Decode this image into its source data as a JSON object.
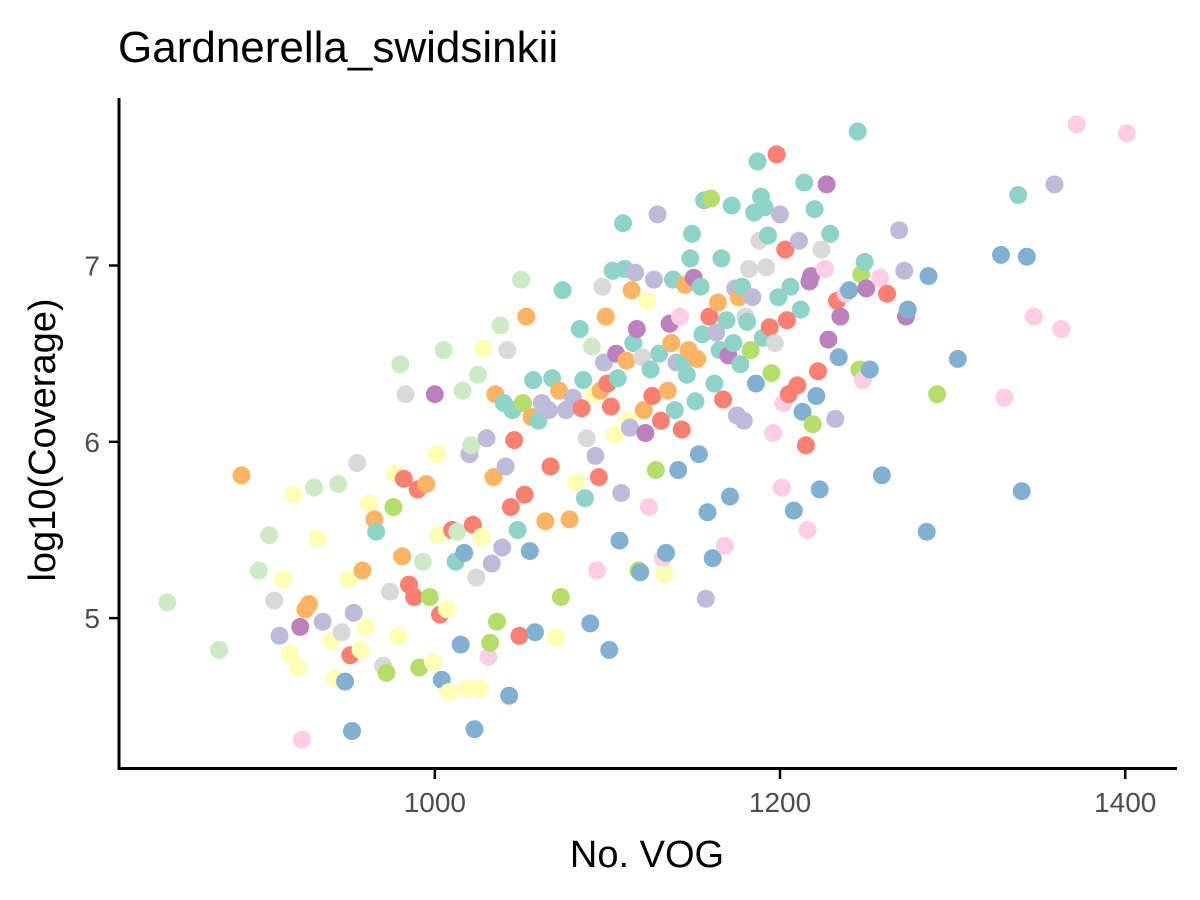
{
  "chart_data": {
    "type": "scatter",
    "title": "Gardnerella_swidsinkii",
    "xlabel": "No. VOG",
    "ylabel": "log10(Coverage)",
    "xlim": [
      817,
      1430
    ],
    "ylim": [
      4.15,
      7.95
    ],
    "x_ticks": [
      1000,
      1200,
      1400
    ],
    "x_tick_labels": [
      "1000",
      "1200",
      "1400"
    ],
    "y_ticks": [
      5,
      6,
      7
    ],
    "y_tick_labels": [
      "5",
      "6",
      "7"
    ],
    "grid": false,
    "legend": "none",
    "colors": {
      "teal": "#8dd3c7",
      "yellow": "#ffffb3",
      "lavender": "#bebada",
      "salmon": "#fb8072",
      "blue": "#80b1d3",
      "orange": "#fdb462",
      "green": "#b3de69",
      "pink": "#fccde5",
      "grey": "#d9d9d9",
      "purple": "#bc80bd",
      "mint": "#ccebc5"
    },
    "points": [
      [
        845,
        5.09,
        "mint"
      ],
      [
        875,
        4.82,
        "mint"
      ],
      [
        888,
        5.81,
        "orange"
      ],
      [
        898,
        5.27,
        "mint"
      ],
      [
        904,
        5.47,
        "mint"
      ],
      [
        907,
        5.1,
        "grey"
      ],
      [
        910,
        4.9,
        "lavender"
      ],
      [
        912,
        5.22,
        "yellow"
      ],
      [
        916,
        4.8,
        "yellow"
      ],
      [
        918,
        5.7,
        "yellow"
      ],
      [
        921,
        4.72,
        "yellow"
      ],
      [
        922,
        4.95,
        "purple"
      ],
      [
        923,
        4.31,
        "pink"
      ],
      [
        925,
        5.05,
        "orange"
      ],
      [
        927,
        5.08,
        "orange"
      ],
      [
        930,
        5.74,
        "mint"
      ],
      [
        932,
        5.45,
        "yellow"
      ],
      [
        935,
        4.98,
        "lavender"
      ],
      [
        940,
        4.87,
        "yellow"
      ],
      [
        942,
        4.66,
        "yellow"
      ],
      [
        944,
        5.76,
        "mint"
      ],
      [
        946,
        4.92,
        "grey"
      ],
      [
        948,
        4.64,
        "blue"
      ],
      [
        950,
        5.22,
        "yellow"
      ],
      [
        951,
        4.79,
        "salmon"
      ],
      [
        952,
        4.36,
        "blue"
      ],
      [
        953,
        5.03,
        "lavender"
      ],
      [
        955,
        5.88,
        "grey"
      ],
      [
        957,
        4.82,
        "yellow"
      ],
      [
        958,
        5.27,
        "orange"
      ],
      [
        960,
        4.95,
        "yellow"
      ],
      [
        962,
        5.65,
        "yellow"
      ],
      [
        965,
        5.56,
        "orange"
      ],
      [
        966,
        5.49,
        "teal"
      ],
      [
        970,
        4.73,
        "grey"
      ],
      [
        972,
        4.69,
        "green"
      ],
      [
        974,
        5.15,
        "grey"
      ],
      [
        976,
        5.63,
        "green"
      ],
      [
        977,
        5.82,
        "yellow"
      ],
      [
        979,
        4.9,
        "yellow"
      ],
      [
        980,
        6.44,
        "mint"
      ],
      [
        981,
        5.35,
        "orange"
      ],
      [
        982,
        5.79,
        "salmon"
      ],
      [
        983,
        6.27,
        "grey"
      ],
      [
        985,
        5.19,
        "salmon"
      ],
      [
        988,
        5.12,
        "salmon"
      ],
      [
        990,
        5.73,
        "salmon"
      ],
      [
        991,
        4.72,
        "green"
      ],
      [
        993,
        5.32,
        "mint"
      ],
      [
        995,
        5.76,
        "orange"
      ],
      [
        997,
        5.12,
        "green"
      ],
      [
        999,
        4.75,
        "yellow"
      ],
      [
        1000,
        6.27,
        "purple"
      ],
      [
        1001,
        5.93,
        "yellow"
      ],
      [
        1002,
        5.47,
        "yellow"
      ],
      [
        1003,
        5.02,
        "salmon"
      ],
      [
        1004,
        4.65,
        "blue"
      ],
      [
        1005,
        6.52,
        "mint"
      ],
      [
        1007,
        5.05,
        "yellow"
      ],
      [
        1008,
        4.58,
        "yellow"
      ],
      [
        1010,
        5.5,
        "salmon"
      ],
      [
        1012,
        5.32,
        "teal"
      ],
      [
        1013,
        5.49,
        "mint"
      ],
      [
        1015,
        4.85,
        "blue"
      ],
      [
        1016,
        6.29,
        "mint"
      ],
      [
        1017,
        5.37,
        "blue"
      ],
      [
        1018,
        4.6,
        "yellow"
      ],
      [
        1020,
        5.93,
        "lavender"
      ],
      [
        1021,
        5.98,
        "mint"
      ],
      [
        1022,
        5.53,
        "salmon"
      ],
      [
        1023,
        4.37,
        "blue"
      ],
      [
        1024,
        5.23,
        "grey"
      ],
      [
        1025,
        6.38,
        "mint"
      ],
      [
        1026,
        4.6,
        "yellow"
      ],
      [
        1027,
        5.46,
        "yellow"
      ],
      [
        1028,
        6.53,
        "yellow"
      ],
      [
        1030,
        6.02,
        "lavender"
      ],
      [
        1031,
        4.78,
        "pink"
      ],
      [
        1032,
        4.86,
        "green"
      ],
      [
        1033,
        5.31,
        "lavender"
      ],
      [
        1034,
        5.8,
        "orange"
      ],
      [
        1035,
        6.27,
        "orange"
      ],
      [
        1036,
        4.98,
        "green"
      ],
      [
        1038,
        6.66,
        "mint"
      ],
      [
        1039,
        5.4,
        "lavender"
      ],
      [
        1040,
        6.22,
        "teal"
      ],
      [
        1041,
        5.86,
        "lavender"
      ],
      [
        1042,
        6.52,
        "grey"
      ],
      [
        1043,
        4.56,
        "blue"
      ],
      [
        1044,
        5.63,
        "salmon"
      ],
      [
        1045,
        6.18,
        "teal"
      ],
      [
        1046,
        6.01,
        "salmon"
      ],
      [
        1048,
        5.5,
        "teal"
      ],
      [
        1049,
        4.9,
        "salmon"
      ],
      [
        1050,
        6.92,
        "mint"
      ],
      [
        1051,
        6.22,
        "green"
      ],
      [
        1052,
        5.7,
        "salmon"
      ],
      [
        1053,
        6.71,
        "orange"
      ],
      [
        1055,
        5.38,
        "blue"
      ],
      [
        1056,
        6.14,
        "orange"
      ],
      [
        1057,
        6.35,
        "teal"
      ],
      [
        1058,
        4.92,
        "blue"
      ],
      [
        1060,
        6.12,
        "teal"
      ],
      [
        1062,
        6.22,
        "lavender"
      ],
      [
        1064,
        5.55,
        "orange"
      ],
      [
        1066,
        6.18,
        "lavender"
      ],
      [
        1067,
        5.86,
        "salmon"
      ],
      [
        1068,
        6.36,
        "teal"
      ],
      [
        1070,
        4.89,
        "yellow"
      ],
      [
        1072,
        6.29,
        "orange"
      ],
      [
        1073,
        5.12,
        "green"
      ],
      [
        1074,
        6.86,
        "teal"
      ],
      [
        1076,
        6.18,
        "lavender"
      ],
      [
        1078,
        5.56,
        "orange"
      ],
      [
        1080,
        6.25,
        "lavender"
      ],
      [
        1082,
        5.77,
        "yellow"
      ],
      [
        1084,
        6.64,
        "teal"
      ],
      [
        1085,
        6.19,
        "salmon"
      ],
      [
        1086,
        6.35,
        "teal"
      ],
      [
        1087,
        5.68,
        "teal"
      ],
      [
        1088,
        6.02,
        "grey"
      ],
      [
        1090,
        4.97,
        "blue"
      ],
      [
        1091,
        6.54,
        "mint"
      ],
      [
        1092,
        6.27,
        "yellow"
      ],
      [
        1093,
        5.92,
        "lavender"
      ],
      [
        1094,
        5.27,
        "pink"
      ],
      [
        1095,
        5.8,
        "salmon"
      ],
      [
        1096,
        6.29,
        "orange"
      ],
      [
        1097,
        6.88,
        "grey"
      ],
      [
        1098,
        6.45,
        "lavender"
      ],
      [
        1099,
        6.71,
        "orange"
      ],
      [
        1100,
        6.33,
        "salmon"
      ],
      [
        1101,
        4.82,
        "blue"
      ],
      [
        1102,
        6.2,
        "salmon"
      ],
      [
        1103,
        6.97,
        "teal"
      ],
      [
        1104,
        6.04,
        "yellow"
      ],
      [
        1105,
        6.5,
        "purple"
      ],
      [
        1106,
        6.36,
        "teal"
      ],
      [
        1107,
        5.44,
        "blue"
      ],
      [
        1108,
        5.71,
        "lavender"
      ],
      [
        1109,
        7.24,
        "teal"
      ],
      [
        1110,
        6.98,
        "teal"
      ],
      [
        1111,
        6.46,
        "orange"
      ],
      [
        1112,
        6.12,
        "yellow"
      ],
      [
        1113,
        6.08,
        "lavender"
      ],
      [
        1114,
        6.86,
        "orange"
      ],
      [
        1115,
        6.56,
        "teal"
      ],
      [
        1116,
        6.96,
        "lavender"
      ],
      [
        1117,
        6.64,
        "purple"
      ],
      [
        1118,
        5.27,
        "green"
      ],
      [
        1119,
        5.26,
        "blue"
      ],
      [
        1120,
        6.48,
        "grey"
      ],
      [
        1121,
        6.18,
        "orange"
      ],
      [
        1122,
        6.05,
        "purple"
      ],
      [
        1123,
        6.8,
        "yellow"
      ],
      [
        1124,
        5.63,
        "pink"
      ],
      [
        1125,
        6.41,
        "teal"
      ],
      [
        1126,
        6.26,
        "salmon"
      ],
      [
        1127,
        6.92,
        "lavender"
      ],
      [
        1128,
        5.84,
        "green"
      ],
      [
        1129,
        7.29,
        "lavender"
      ],
      [
        1130,
        6.5,
        "teal"
      ],
      [
        1131,
        6.12,
        "salmon"
      ],
      [
        1132,
        5.34,
        "pink"
      ],
      [
        1133,
        5.25,
        "yellow"
      ],
      [
        1134,
        5.37,
        "blue"
      ],
      [
        1135,
        6.29,
        "orange"
      ],
      [
        1136,
        6.67,
        "purple"
      ],
      [
        1137,
        6.56,
        "orange"
      ],
      [
        1138,
        6.92,
        "teal"
      ],
      [
        1139,
        6.18,
        "teal"
      ],
      [
        1140,
        6.45,
        "lavender"
      ],
      [
        1141,
        5.84,
        "blue"
      ],
      [
        1142,
        6.71,
        "pink"
      ],
      [
        1143,
        6.07,
        "salmon"
      ],
      [
        1144,
        6.45,
        "teal"
      ],
      [
        1145,
        6.89,
        "orange"
      ],
      [
        1146,
        6.38,
        "teal"
      ],
      [
        1147,
        6.52,
        "orange"
      ],
      [
        1148,
        7.04,
        "teal"
      ],
      [
        1149,
        7.18,
        "teal"
      ],
      [
        1150,
        6.93,
        "purple"
      ],
      [
        1151,
        6.23,
        "teal"
      ],
      [
        1152,
        6.47,
        "orange"
      ],
      [
        1153,
        5.93,
        "blue"
      ],
      [
        1154,
        6.88,
        "teal"
      ],
      [
        1155,
        6.61,
        "teal"
      ],
      [
        1156,
        7.37,
        "teal"
      ],
      [
        1157,
        5.11,
        "lavender"
      ],
      [
        1158,
        5.6,
        "blue"
      ],
      [
        1159,
        6.71,
        "salmon"
      ],
      [
        1160,
        7.38,
        "green"
      ],
      [
        1161,
        5.34,
        "blue"
      ],
      [
        1162,
        6.33,
        "teal"
      ],
      [
        1163,
        6.62,
        "lavender"
      ],
      [
        1164,
        6.79,
        "orange"
      ],
      [
        1165,
        6.52,
        "teal"
      ],
      [
        1166,
        7.04,
        "teal"
      ],
      [
        1167,
        6.24,
        "salmon"
      ],
      [
        1168,
        5.41,
        "pink"
      ],
      [
        1169,
        6.69,
        "teal"
      ],
      [
        1170,
        6.49,
        "purple"
      ],
      [
        1171,
        5.69,
        "blue"
      ],
      [
        1172,
        7.34,
        "teal"
      ],
      [
        1173,
        6.56,
        "teal"
      ],
      [
        1174,
        6.87,
        "lavender"
      ],
      [
        1175,
        6.15,
        "lavender"
      ],
      [
        1176,
        6.82,
        "orange"
      ],
      [
        1177,
        6.44,
        "teal"
      ],
      [
        1178,
        6.88,
        "teal"
      ],
      [
        1179,
        6.12,
        "lavender"
      ],
      [
        1180,
        6.71,
        "grey"
      ],
      [
        1181,
        6.68,
        "teal"
      ],
      [
        1182,
        6.98,
        "grey"
      ],
      [
        1183,
        6.52,
        "green"
      ],
      [
        1184,
        6.82,
        "lavender"
      ],
      [
        1185,
        7.3,
        "teal"
      ],
      [
        1186,
        6.33,
        "blue"
      ],
      [
        1187,
        7.59,
        "teal"
      ],
      [
        1188,
        7.14,
        "grey"
      ],
      [
        1189,
        7.39,
        "teal"
      ],
      [
        1190,
        6.59,
        "teal"
      ],
      [
        1191,
        7.33,
        "teal"
      ],
      [
        1192,
        6.99,
        "grey"
      ],
      [
        1193,
        7.17,
        "teal"
      ],
      [
        1194,
        6.65,
        "salmon"
      ],
      [
        1195,
        6.39,
        "green"
      ],
      [
        1196,
        6.05,
        "pink"
      ],
      [
        1197,
        6.56,
        "grey"
      ],
      [
        1198,
        7.63,
        "salmon"
      ],
      [
        1199,
        6.82,
        "teal"
      ],
      [
        1200,
        7.29,
        "lavender"
      ],
      [
        1201,
        5.74,
        "pink"
      ],
      [
        1202,
        6.22,
        "pink"
      ],
      [
        1203,
        7.09,
        "salmon"
      ],
      [
        1204,
        6.69,
        "salmon"
      ],
      [
        1205,
        6.27,
        "salmon"
      ],
      [
        1206,
        6.88,
        "teal"
      ],
      [
        1208,
        5.61,
        "blue"
      ],
      [
        1210,
        6.32,
        "salmon"
      ],
      [
        1211,
        7.14,
        "lavender"
      ],
      [
        1212,
        6.75,
        "teal"
      ],
      [
        1213,
        6.17,
        "blue"
      ],
      [
        1214,
        7.47,
        "teal"
      ],
      [
        1215,
        5.98,
        "salmon"
      ],
      [
        1216,
        5.5,
        "pink"
      ],
      [
        1217,
        6.91,
        "purple"
      ],
      [
        1218,
        6.94,
        "purple"
      ],
      [
        1219,
        6.1,
        "green"
      ],
      [
        1220,
        7.32,
        "teal"
      ],
      [
        1221,
        6.26,
        "blue"
      ],
      [
        1222,
        6.4,
        "salmon"
      ],
      [
        1223,
        5.73,
        "blue"
      ],
      [
        1224,
        7.09,
        "grey"
      ],
      [
        1226,
        6.98,
        "pink"
      ],
      [
        1227,
        7.46,
        "purple"
      ],
      [
        1228,
        6.58,
        "purple"
      ],
      [
        1229,
        7.18,
        "teal"
      ],
      [
        1232,
        6.13,
        "lavender"
      ],
      [
        1233,
        6.8,
        "salmon"
      ],
      [
        1234,
        6.48,
        "blue"
      ],
      [
        1235,
        6.71,
        "purple"
      ],
      [
        1238,
        6.84,
        "pink"
      ],
      [
        1240,
        6.86,
        "blue"
      ],
      [
        1245,
        7.76,
        "teal"
      ],
      [
        1246,
        6.41,
        "green"
      ],
      [
        1247,
        6.95,
        "green"
      ],
      [
        1248,
        6.35,
        "pink"
      ],
      [
        1249,
        7.02,
        "teal"
      ],
      [
        1250,
        6.87,
        "purple"
      ],
      [
        1252,
        6.41,
        "blue"
      ],
      [
        1258,
        6.93,
        "pink"
      ],
      [
        1259,
        5.81,
        "blue"
      ],
      [
        1262,
        6.84,
        "salmon"
      ],
      [
        1269,
        7.2,
        "lavender"
      ],
      [
        1272,
        6.97,
        "lavender"
      ],
      [
        1273,
        6.71,
        "purple"
      ],
      [
        1274,
        6.75,
        "blue"
      ],
      [
        1285,
        5.49,
        "blue"
      ],
      [
        1286,
        6.94,
        "blue"
      ],
      [
        1291,
        6.27,
        "green"
      ],
      [
        1303,
        6.47,
        "blue"
      ],
      [
        1328,
        7.06,
        "blue"
      ],
      [
        1330,
        6.25,
        "pink"
      ],
      [
        1338,
        7.4,
        "teal"
      ],
      [
        1340,
        5.72,
        "blue"
      ],
      [
        1343,
        7.05,
        "blue"
      ],
      [
        1347,
        6.71,
        "pink"
      ],
      [
        1359,
        7.46,
        "lavender"
      ],
      [
        1363,
        6.64,
        "pink"
      ],
      [
        1372,
        7.8,
        "pink"
      ],
      [
        1401,
        7.75,
        "pink"
      ]
    ]
  }
}
